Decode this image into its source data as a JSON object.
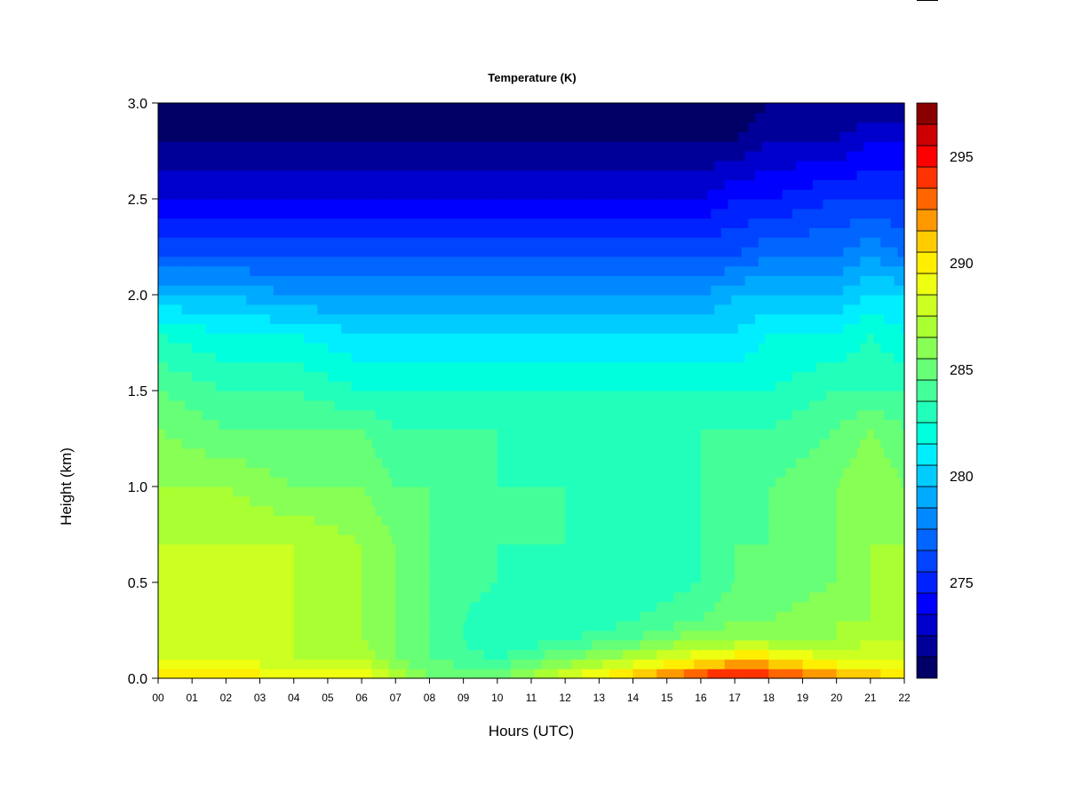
{
  "chart_data": {
    "type": "heatmap",
    "title": "Temperature (K)",
    "xlabel": "Hours (UTC)",
    "ylabel": "Height (km)",
    "xlim": [
      0,
      22
    ],
    "ylim": [
      0.0,
      3.0
    ],
    "x_ticks": [
      "00",
      "01",
      "02",
      "03",
      "04",
      "05",
      "06",
      "07",
      "08",
      "09",
      "10",
      "11",
      "12",
      "13",
      "14",
      "15",
      "16",
      "17",
      "18",
      "19",
      "20",
      "21",
      "22"
    ],
    "y_ticks": [
      "0.0",
      "0.5",
      "1.0",
      "1.5",
      "2.0",
      "2.5",
      "3.0"
    ],
    "y_tick_values": [
      0.0,
      0.5,
      1.0,
      1.5,
      2.0,
      2.5,
      3.0
    ],
    "colorbar": {
      "range": [
        271,
        297
      ],
      "step": 1,
      "ticks": [
        "275",
        "280",
        "285",
        "290",
        "295"
      ],
      "tick_values": [
        275,
        280,
        285,
        290,
        295
      ],
      "colors": [
        "#000066",
        "#000099",
        "#0000cc",
        "#0000ff",
        "#0022ff",
        "#0044ff",
        "#0066ff",
        "#0088ff",
        "#00aaff",
        "#00ccff",
        "#00eeff",
        "#00ffdd",
        "#22ffbb",
        "#44ff99",
        "#66ff77",
        "#88ff55",
        "#aaff33",
        "#ccff22",
        "#eeff11",
        "#ffee00",
        "#ffcc00",
        "#ff9900",
        "#ff6600",
        "#ff3300",
        "#ff0000",
        "#cc0000",
        "#880000"
      ]
    },
    "heights_km": [
      0.0,
      0.1,
      0.2,
      0.3,
      0.5,
      0.7,
      1.0,
      1.3,
      1.5,
      1.8,
      2.0,
      2.2,
      2.5,
      2.8,
      3.0
    ],
    "profiles": [
      {
        "hour": 0,
        "temps": [
          291,
          289,
          288,
          288,
          288,
          288,
          287,
          286,
          285,
          283,
          280,
          277,
          274,
          272,
          271
        ]
      },
      {
        "hour": 2,
        "temps": [
          291,
          289,
          288,
          288,
          288,
          288,
          287,
          285,
          284,
          282,
          280,
          277,
          274,
          272,
          271
        ]
      },
      {
        "hour": 4,
        "temps": [
          290,
          288,
          288,
          288,
          288,
          288,
          286,
          285,
          284,
          282,
          279,
          277,
          274,
          272,
          271
        ]
      },
      {
        "hour": 6,
        "temps": [
          290,
          288,
          287,
          287,
          287,
          287,
          286,
          285,
          283,
          281,
          279,
          277,
          274,
          272,
          271
        ]
      },
      {
        "hour": 7,
        "temps": [
          288,
          286,
          286,
          286,
          286,
          286,
          285,
          284,
          283,
          281,
          279,
          277,
          274,
          272,
          271
        ]
      },
      {
        "hour": 8,
        "temps": [
          286,
          285,
          285,
          285,
          285,
          285,
          285,
          284,
          283,
          281,
          279,
          277,
          274,
          272,
          271
        ]
      },
      {
        "hour": 10,
        "temps": [
          286,
          284,
          283,
          283,
          284,
          284,
          284,
          284,
          283,
          281,
          279,
          277,
          274,
          272,
          271
        ]
      },
      {
        "hour": 12,
        "temps": [
          289,
          286,
          284,
          283,
          283,
          284,
          284,
          283,
          283,
          281,
          279,
          277,
          274,
          272,
          271
        ]
      },
      {
        "hour": 14,
        "temps": [
          292,
          288,
          285,
          284,
          283,
          283,
          284,
          283,
          283,
          281,
          279,
          277,
          274,
          272,
          271
        ]
      },
      {
        "hour": 16,
        "temps": [
          295,
          290,
          287,
          285,
          284,
          284,
          284,
          284,
          283,
          281,
          279,
          277,
          274,
          272,
          271
        ]
      },
      {
        "hour": 17,
        "temps": [
          296,
          291,
          287,
          286,
          285,
          285,
          284,
          284,
          283,
          281,
          280,
          277,
          275,
          272,
          271
        ]
      },
      {
        "hour": 18,
        "temps": [
          295,
          291,
          287,
          286,
          285,
          285,
          285,
          284,
          283,
          282,
          280,
          278,
          275,
          273,
          272
        ]
      },
      {
        "hour": 20,
        "temps": [
          293,
          289,
          287,
          287,
          286,
          286,
          286,
          285,
          284,
          282,
          280,
          278,
          276,
          273,
          272
        ]
      },
      {
        "hour": 21,
        "temps": [
          292,
          289,
          288,
          287,
          287,
          287,
          287,
          286,
          284,
          283,
          281,
          279,
          276,
          274,
          272
        ]
      },
      {
        "hour": 22,
        "temps": [
          291,
          289,
          288,
          287,
          287,
          287,
          286,
          285,
          284,
          282,
          281,
          278,
          276,
          274,
          272
        ]
      }
    ]
  }
}
